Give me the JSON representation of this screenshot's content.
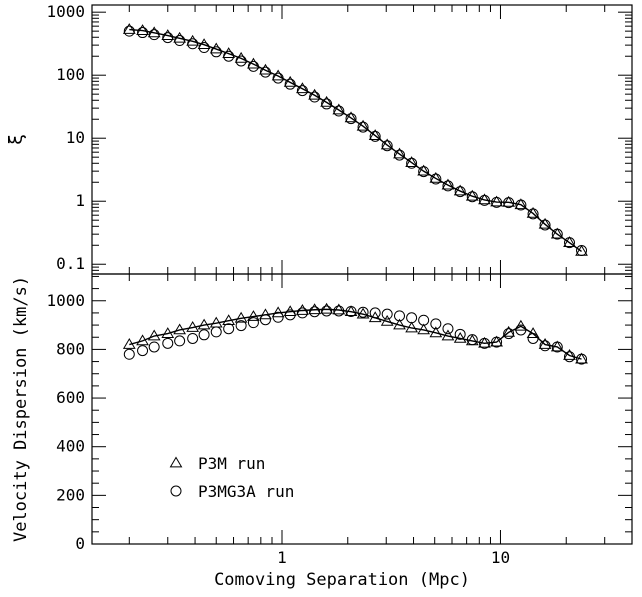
{
  "chart_data": [
    {
      "type": "line",
      "panel": "top",
      "ylabel": "ξ",
      "xscale": "log",
      "yscale": "log",
      "xlim": [
        0.135,
        40
      ],
      "ylim": [
        0.07,
        1300
      ],
      "yticks": [
        {
          "value": 0.1,
          "label": "0.1"
        },
        {
          "value": 1,
          "label": "1"
        },
        {
          "value": 10,
          "label": "10"
        },
        {
          "value": 100,
          "label": "100"
        },
        {
          "value": 1000,
          "label": "1000"
        }
      ],
      "grid": false,
      "series": [
        {
          "name": "P3M run",
          "marker": "triangle",
          "x": [
            0.2,
            0.23,
            0.26,
            0.3,
            0.34,
            0.39,
            0.44,
            0.5,
            0.57,
            0.65,
            0.74,
            0.84,
            0.96,
            1.09,
            1.24,
            1.41,
            1.6,
            1.82,
            2.07,
            2.35,
            2.67,
            3.03,
            3.45,
            3.92,
            4.45,
            5.06,
            5.75,
            6.54,
            7.43,
            8.45,
            9.6,
            10.9,
            12.4,
            14.1,
            16.0,
            18.2,
            20.7,
            23.5
          ],
          "y": [
            530,
            510,
            470,
            425,
            385,
            345,
            305,
            260,
            220,
            185,
            150,
            120,
            97,
            77,
            61,
            48,
            37,
            28,
            21,
            15.5,
            11,
            7.8,
            5.6,
            4.1,
            3.0,
            2.3,
            1.8,
            1.45,
            1.2,
            1.05,
            0.97,
            0.96,
            0.88,
            0.64,
            0.43,
            0.3,
            0.22,
            0.16
          ]
        },
        {
          "name": "P3MG3A run",
          "marker": "circle",
          "x": [
            0.2,
            0.23,
            0.26,
            0.3,
            0.34,
            0.39,
            0.44,
            0.5,
            0.57,
            0.65,
            0.74,
            0.84,
            0.96,
            1.09,
            1.24,
            1.41,
            1.6,
            1.82,
            2.07,
            2.35,
            2.67,
            3.03,
            3.45,
            3.92,
            4.45,
            5.06,
            5.75,
            6.54,
            7.43,
            8.45,
            9.6,
            10.9,
            12.4,
            14.1,
            16.0,
            18.2,
            20.7,
            23.5
          ],
          "y": [
            500,
            475,
            440,
            395,
            355,
            315,
            275,
            235,
            200,
            168,
            138,
            112,
            90,
            72,
            57,
            45,
            35,
            27,
            20.5,
            15,
            10.7,
            7.6,
            5.4,
            4.0,
            2.95,
            2.25,
            1.75,
            1.42,
            1.18,
            1.03,
            0.96,
            0.95,
            0.87,
            0.63,
            0.42,
            0.3,
            0.22,
            0.165
          ]
        }
      ]
    },
    {
      "type": "line",
      "panel": "bottom",
      "xlabel": "Comoving Separation (Mpc)",
      "ylabel": "Velocity Dispersion (km/s)",
      "xscale": "log",
      "yscale": "linear",
      "xlim": [
        0.135,
        40
      ],
      "ylim": [
        0,
        1110
      ],
      "xticks": [
        {
          "value": 1,
          "label": "1"
        },
        {
          "value": 10,
          "label": "10"
        }
      ],
      "yticks": [
        {
          "value": 0,
          "label": "0"
        },
        {
          "value": 200,
          "label": "200"
        },
        {
          "value": 400,
          "label": "400"
        },
        {
          "value": 600,
          "label": "600"
        },
        {
          "value": 800,
          "label": "800"
        },
        {
          "value": 1000,
          "label": "1000"
        }
      ],
      "grid": false,
      "legend_position": "bottom-left",
      "series": [
        {
          "name": "P3M run",
          "marker": "triangle",
          "x": [
            0.2,
            0.23,
            0.26,
            0.3,
            0.34,
            0.39,
            0.44,
            0.5,
            0.57,
            0.65,
            0.74,
            0.84,
            0.96,
            1.09,
            1.24,
            1.41,
            1.6,
            1.82,
            2.07,
            2.35,
            2.67,
            3.03,
            3.45,
            3.92,
            4.45,
            5.06,
            5.75,
            6.54,
            7.43,
            8.45,
            9.6,
            10.9,
            12.4,
            14.1,
            16.0,
            18.2,
            20.7,
            23.5
          ],
          "y": [
            820,
            835,
            855,
            865,
            880,
            890,
            900,
            908,
            918,
            928,
            935,
            942,
            950,
            955,
            960,
            963,
            965,
            962,
            955,
            945,
            930,
            915,
            900,
            888,
            880,
            868,
            855,
            845,
            835,
            825,
            830,
            870,
            895,
            865,
            820,
            810,
            775,
            760
          ]
        },
        {
          "name": "P3MG3A run",
          "marker": "circle",
          "x": [
            0.2,
            0.23,
            0.26,
            0.3,
            0.34,
            0.39,
            0.44,
            0.5,
            0.57,
            0.65,
            0.74,
            0.84,
            0.96,
            1.09,
            1.24,
            1.41,
            1.6,
            1.82,
            2.07,
            2.35,
            2.67,
            3.03,
            3.45,
            3.92,
            4.45,
            5.06,
            5.75,
            6.54,
            7.43,
            8.45,
            9.6,
            10.9,
            12.4,
            14.1,
            16.0,
            18.2,
            20.7,
            23.5
          ],
          "y": [
            780,
            795,
            810,
            825,
            835,
            845,
            860,
            872,
            885,
            898,
            910,
            922,
            932,
            942,
            950,
            955,
            958,
            958,
            956,
            953,
            950,
            945,
            938,
            930,
            920,
            905,
            885,
            862,
            840,
            825,
            830,
            865,
            880,
            845,
            815,
            810,
            770,
            760
          ]
        }
      ]
    }
  ]
}
